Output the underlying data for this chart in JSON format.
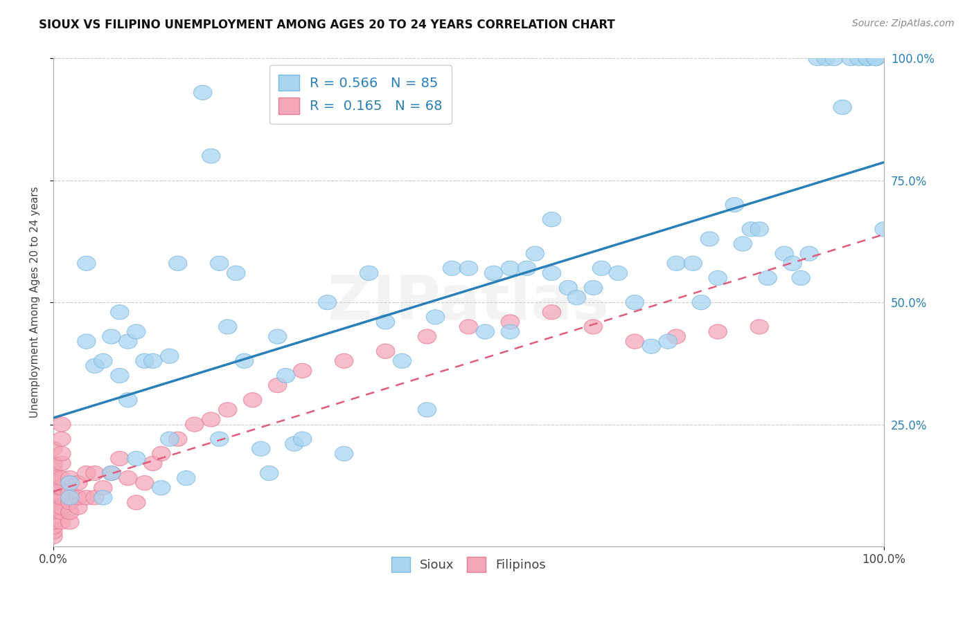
{
  "title": "SIOUX VS FILIPINO UNEMPLOYMENT AMONG AGES 20 TO 24 YEARS CORRELATION CHART",
  "source_text": "Source: ZipAtlas.com",
  "ylabel": "Unemployment Among Ages 20 to 24 years",
  "sioux_R": "0.566",
  "sioux_N": "85",
  "filipino_R": "0.165",
  "filipino_N": "68",
  "sioux_color": "#a8d4f0",
  "sioux_edge_color": "#7ab8e0",
  "filipino_color": "#f4a7b9",
  "filipino_edge_color": "#e87a96",
  "sioux_line_color": "#2980b9",
  "filipino_line_color": "#e05a7a",
  "legend_sioux_label": "Sioux",
  "legend_filipino_label": "Filipinos",
  "watermark_text": "ZIPatlas",
  "sioux_x": [
    0.02,
    0.02,
    0.04,
    0.04,
    0.05,
    0.06,
    0.06,
    0.07,
    0.07,
    0.08,
    0.08,
    0.09,
    0.09,
    0.1,
    0.1,
    0.11,
    0.12,
    0.13,
    0.14,
    0.14,
    0.15,
    0.16,
    0.18,
    0.19,
    0.2,
    0.2,
    0.21,
    0.22,
    0.23,
    0.25,
    0.26,
    0.27,
    0.28,
    0.29,
    0.3,
    0.33,
    0.35,
    0.38,
    0.4,
    0.42,
    0.45,
    0.46,
    0.48,
    0.5,
    0.52,
    0.53,
    0.55,
    0.55,
    0.57,
    0.58,
    0.6,
    0.6,
    0.62,
    0.63,
    0.65,
    0.66,
    0.68,
    0.7,
    0.72,
    0.74,
    0.75,
    0.77,
    0.78,
    0.79,
    0.8,
    0.82,
    0.83,
    0.84,
    0.85,
    0.86,
    0.88,
    0.89,
    0.9,
    0.91,
    0.92,
    0.93,
    0.94,
    0.95,
    0.96,
    0.97,
    0.98,
    0.98,
    0.99,
    0.99,
    1.0
  ],
  "sioux_y": [
    0.13,
    0.1,
    0.58,
    0.42,
    0.37,
    0.38,
    0.1,
    0.43,
    0.15,
    0.48,
    0.35,
    0.3,
    0.42,
    0.44,
    0.18,
    0.38,
    0.38,
    0.12,
    0.22,
    0.39,
    0.58,
    0.14,
    0.93,
    0.8,
    0.22,
    0.58,
    0.45,
    0.56,
    0.38,
    0.2,
    0.15,
    0.43,
    0.35,
    0.21,
    0.22,
    0.5,
    0.19,
    0.56,
    0.46,
    0.38,
    0.28,
    0.47,
    0.57,
    0.57,
    0.44,
    0.56,
    0.57,
    0.44,
    0.57,
    0.6,
    0.56,
    0.67,
    0.53,
    0.51,
    0.53,
    0.57,
    0.56,
    0.5,
    0.41,
    0.42,
    0.58,
    0.58,
    0.5,
    0.63,
    0.55,
    0.7,
    0.62,
    0.65,
    0.65,
    0.55,
    0.6,
    0.58,
    0.55,
    0.6,
    1.0,
    1.0,
    1.0,
    0.9,
    1.0,
    1.0,
    1.0,
    1.0,
    1.0,
    1.0,
    0.65
  ],
  "filipino_x": [
    0.0,
    0.0,
    0.0,
    0.0,
    0.0,
    0.0,
    0.0,
    0.0,
    0.0,
    0.0,
    0.0,
    0.0,
    0.0,
    0.0,
    0.0,
    0.0,
    0.0,
    0.0,
    0.0,
    0.0,
    0.01,
    0.01,
    0.01,
    0.01,
    0.01,
    0.01,
    0.01,
    0.01,
    0.01,
    0.01,
    0.02,
    0.02,
    0.02,
    0.02,
    0.02,
    0.03,
    0.03,
    0.03,
    0.04,
    0.04,
    0.05,
    0.05,
    0.06,
    0.07,
    0.08,
    0.09,
    0.1,
    0.11,
    0.12,
    0.13,
    0.15,
    0.17,
    0.19,
    0.21,
    0.24,
    0.27,
    0.3,
    0.35,
    0.4,
    0.45,
    0.5,
    0.55,
    0.6,
    0.65,
    0.7,
    0.75,
    0.8,
    0.85
  ],
  "filipino_y": [
    0.02,
    0.03,
    0.04,
    0.05,
    0.05,
    0.06,
    0.07,
    0.08,
    0.08,
    0.09,
    0.1,
    0.1,
    0.11,
    0.12,
    0.13,
    0.14,
    0.15,
    0.16,
    0.17,
    0.2,
    0.05,
    0.07,
    0.08,
    0.1,
    0.12,
    0.14,
    0.17,
    0.19,
    0.22,
    0.25,
    0.05,
    0.07,
    0.09,
    0.11,
    0.14,
    0.08,
    0.1,
    0.13,
    0.1,
    0.15,
    0.1,
    0.15,
    0.12,
    0.15,
    0.18,
    0.14,
    0.09,
    0.13,
    0.17,
    0.19,
    0.22,
    0.25,
    0.26,
    0.28,
    0.3,
    0.33,
    0.36,
    0.38,
    0.4,
    0.43,
    0.45,
    0.46,
    0.48,
    0.45,
    0.42,
    0.43,
    0.44,
    0.45
  ],
  "ytick_positions": [
    0.25,
    0.5,
    0.75,
    1.0
  ],
  "ytick_labels": [
    "25.0%",
    "50.0%",
    "75.0%",
    "100.0%"
  ],
  "xtick_positions": [
    0.0,
    1.0
  ],
  "xtick_labels": [
    "0.0%",
    "100.0%"
  ]
}
